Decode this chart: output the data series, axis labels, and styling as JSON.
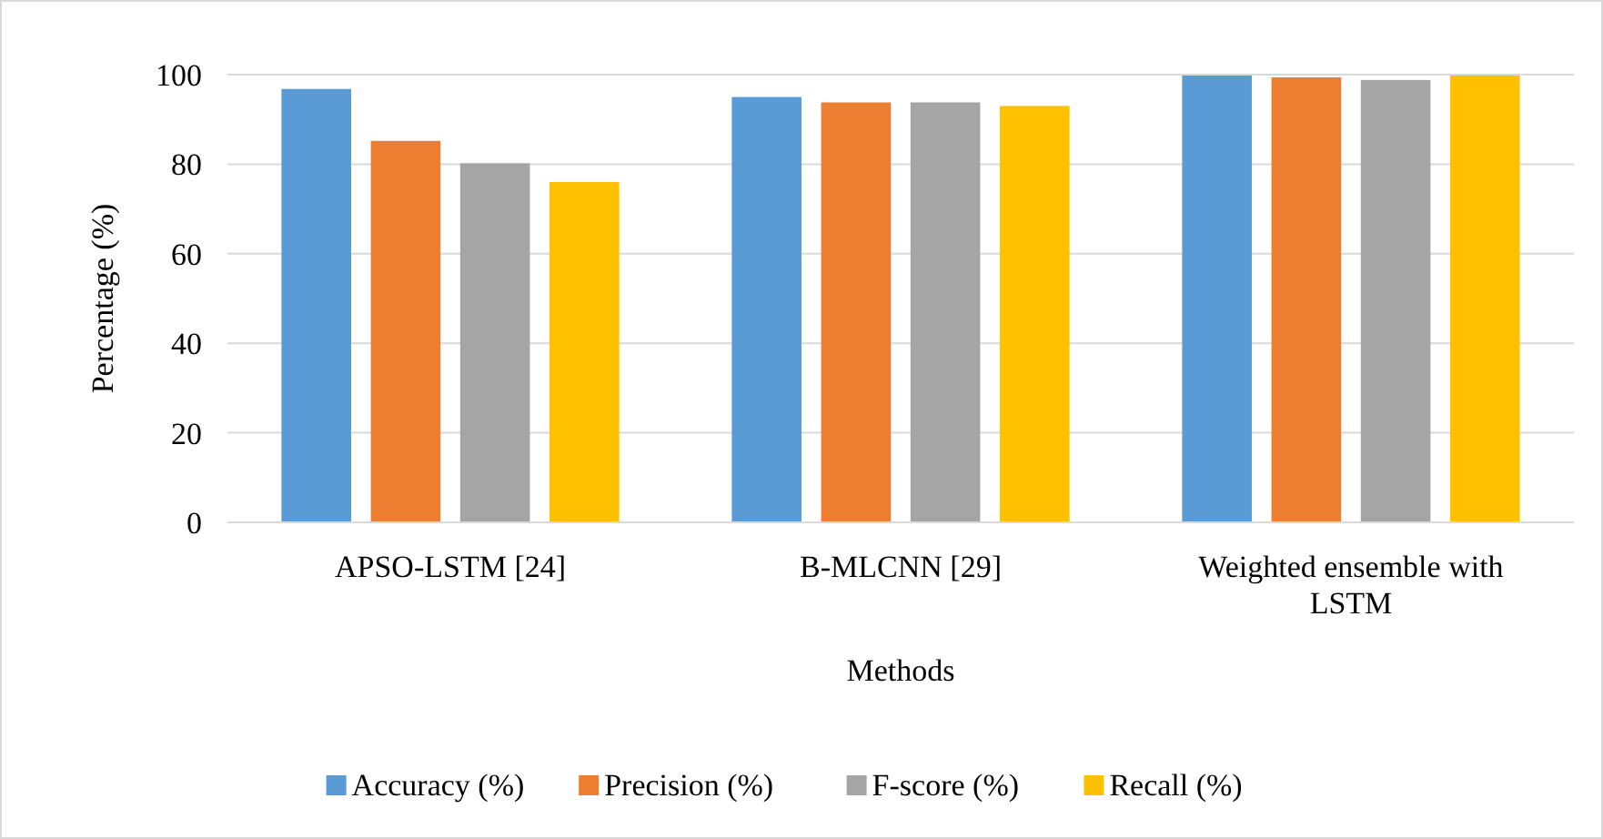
{
  "chart_data": {
    "type": "bar",
    "xlabel": "Methods",
    "ylabel": "Percentage (%)",
    "categories": [
      "APSO-LSTM [24]",
      "B-MLCNN [29]",
      "Weighted ensemble with LSTM"
    ],
    "series": [
      {
        "name": "Accuracy (%)",
        "color": "#5b9bd5",
        "values": [
          96.8,
          95,
          99.8
        ]
      },
      {
        "name": "Precision (%)",
        "color": "#ed7d31",
        "values": [
          85.2,
          93.8,
          99.4
        ]
      },
      {
        "name": "F-score (%)",
        "color": "#a5a5a5",
        "values": [
          80.2,
          93.8,
          98.8
        ]
      },
      {
        "name": "Recall (%)",
        "color": "#ffc000",
        "values": [
          76,
          93,
          99.8
        ]
      }
    ],
    "ylim": [
      0,
      100
    ],
    "yticks": [
      0,
      20,
      40,
      60,
      80,
      100
    ],
    "grid": "y",
    "legend": "bottom"
  }
}
